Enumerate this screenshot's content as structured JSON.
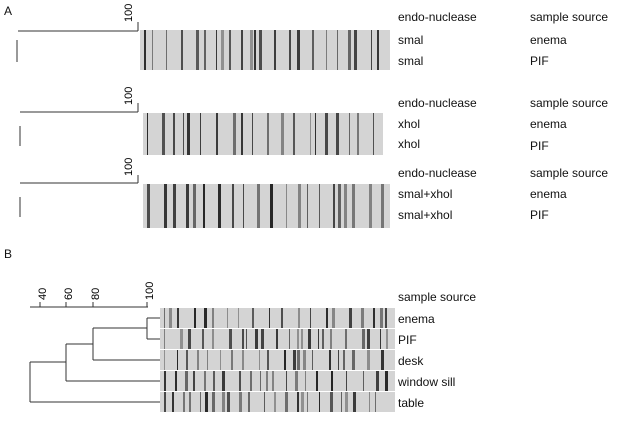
{
  "figure": {
    "panel_a_label": "A",
    "panel_b_label": "B",
    "scale_label": "100",
    "panel_a": {
      "column_headers": {
        "nuclease": "endo-nuclease",
        "source": "sample source"
      },
      "groups": [
        {
          "rows": [
            {
              "nuclease": "smal",
              "source": "enema"
            },
            {
              "nuclease": "smal",
              "source": "PIF"
            }
          ]
        },
        {
          "rows": [
            {
              "nuclease": "xhol",
              "source": "enema"
            },
            {
              "nuclease": "xhol",
              "source": "PIF"
            }
          ]
        },
        {
          "rows": [
            {
              "nuclease": "smal+xhol",
              "source": "enema"
            },
            {
              "nuclease": "smal+xhol",
              "source": "PIF"
            }
          ]
        }
      ]
    },
    "panel_b": {
      "column_header": "sample source",
      "scale_ticks": [
        "40",
        "60",
        "80",
        "100"
      ],
      "samples": [
        "enema",
        "PIF",
        "desk",
        "window sill",
        "table"
      ]
    },
    "colors": {
      "band": "#1a1a1a",
      "lane_bg": "#d4d4d4",
      "line": "#333333"
    }
  }
}
